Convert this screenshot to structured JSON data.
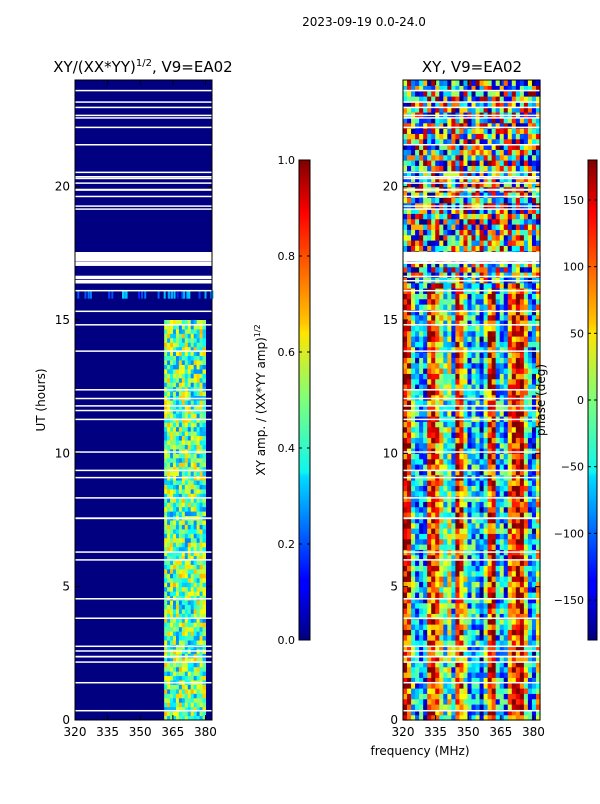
{
  "suptitle": "2023-09-19 0.0-24.0",
  "chart_data": [
    {
      "type": "heatmap",
      "title_base": "XY/(XX*YY)",
      "title_exp": "1/2",
      "title_suffix": ", V9=EA02",
      "xlabel": "",
      "ylabel": "UT (hours)",
      "xlim": [
        320,
        383
      ],
      "ylim": [
        0,
        24
      ],
      "xticks": [
        "320",
        "335",
        "350",
        "365",
        "380"
      ],
      "xtick_values": [
        320,
        335,
        350,
        365,
        380
      ],
      "yticks": [
        "0",
        "5",
        "10",
        "15",
        "20"
      ],
      "ytick_values": [
        0,
        5,
        10,
        15,
        20
      ],
      "colorbar": {
        "label_base": "XY amp. / (XX*YY amp)",
        "label_exp": "1/2",
        "ticks": [
          "0.0",
          "0.2",
          "0.4",
          "0.6",
          "0.8",
          "1.0"
        ],
        "tick_values": [
          0,
          0.2,
          0.4,
          0.6,
          0.8,
          1.0
        ],
        "range": [
          0,
          1
        ]
      },
      "colormap": "jet",
      "description_values": {
        "background_value": 0.0,
        "band_low_mhz": 361,
        "band_high_mhz": 380,
        "band_active_hours": [
          0,
          15
        ]
      }
    },
    {
      "type": "heatmap",
      "title": "XY, V9=EA02",
      "xlabel": "frequency (MHz)",
      "ylabel": "",
      "xlim": [
        320,
        383
      ],
      "ylim": [
        0,
        24
      ],
      "xticks": [
        "320",
        "335",
        "350",
        "365",
        "380"
      ],
      "xtick_values": [
        320,
        335,
        350,
        365,
        380
      ],
      "yticks": [
        "0",
        "5",
        "10",
        "15",
        "20"
      ],
      "ytick_values": [
        0,
        5,
        10,
        15,
        20
      ],
      "colorbar": {
        "label": "phase (deg)",
        "ticks": [
          "−150",
          "−100",
          "−50",
          "0",
          "50",
          "100",
          "150"
        ],
        "tick_values": [
          -150,
          -100,
          -50,
          0,
          50,
          100,
          150
        ],
        "range": [
          -180,
          180
        ]
      },
      "colormap": "jet"
    }
  ]
}
